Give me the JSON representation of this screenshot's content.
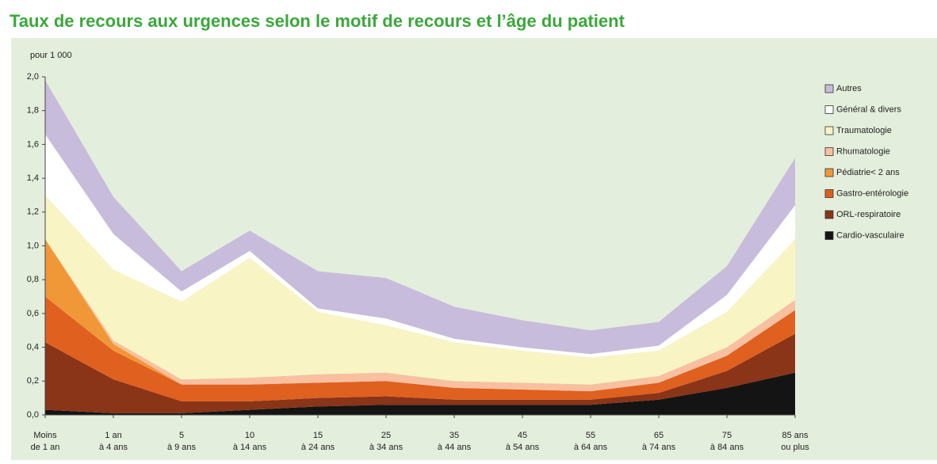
{
  "chart_data": {
    "type": "stacked_area",
    "title": "Taux de recours aux urgences selon le motif de recours et l’âge du patient",
    "y_axis_label": "pour 1 000",
    "categories": [
      [
        "Moins",
        "de 1 an"
      ],
      [
        "1 an",
        "à 4 ans"
      ],
      [
        "5",
        "à 9 ans"
      ],
      [
        "10",
        "à 14 ans"
      ],
      [
        "15",
        "à 24 ans"
      ],
      [
        "25",
        "à 34 ans"
      ],
      [
        "35",
        "à 44 ans"
      ],
      [
        "45",
        "à 54 ans"
      ],
      [
        "55",
        "à 64 ans"
      ],
      [
        "65",
        "à 74 ans"
      ],
      [
        "75",
        "à 84 ans"
      ],
      [
        "85 ans",
        "ou plus"
      ]
    ],
    "series": [
      {
        "name": "Cardio-vasculaire",
        "color": "#141414",
        "values": [
          0.03,
          0.01,
          0.01,
          0.03,
          0.05,
          0.06,
          0.06,
          0.06,
          0.06,
          0.09,
          0.16,
          0.25
        ]
      },
      {
        "name": "ORL-respiratoire",
        "color": "#8a3418",
        "values": [
          0.4,
          0.2,
          0.07,
          0.05,
          0.05,
          0.05,
          0.03,
          0.03,
          0.03,
          0.04,
          0.1,
          0.23
        ]
      },
      {
        "name": "Gastro-entérologie",
        "color": "#e06020",
        "values": [
          0.27,
          0.17,
          0.1,
          0.1,
          0.09,
          0.09,
          0.07,
          0.06,
          0.05,
          0.06,
          0.09,
          0.14
        ]
      },
      {
        "name": "Pédiatrie< 2 ans",
        "color": "#f09838",
        "values": [
          0.34,
          0.04,
          0,
          0,
          0,
          0,
          0,
          0,
          0,
          0,
          0,
          0
        ]
      },
      {
        "name": "Rhumatologie",
        "color": "#f8c0a0",
        "values": [
          0,
          0.02,
          0.03,
          0.04,
          0.05,
          0.05,
          0.04,
          0.04,
          0.04,
          0.04,
          0.05,
          0.06
        ]
      },
      {
        "name": "Traumatologie",
        "color": "#f8f4c4",
        "values": [
          0.26,
          0.42,
          0.46,
          0.71,
          0.37,
          0.28,
          0.23,
          0.19,
          0.16,
          0.15,
          0.21,
          0.36
        ]
      },
      {
        "name": "Général & divers",
        "color": "#ffffff",
        "values": [
          0.36,
          0.21,
          0.06,
          0.04,
          0.02,
          0.04,
          0.02,
          0.02,
          0.02,
          0.03,
          0.1,
          0.2
        ]
      },
      {
        "name": "Autres",
        "color": "#c8bcdc",
        "values": [
          0.32,
          0.22,
          0.12,
          0.12,
          0.22,
          0.24,
          0.19,
          0.16,
          0.14,
          0.14,
          0.17,
          0.28
        ]
      }
    ],
    "ylim": [
      0,
      2
    ],
    "yticks": [
      {
        "value": 0,
        "label": "0,0"
      },
      {
        "value": 0.2,
        "label": "0,2"
      },
      {
        "value": 0.4,
        "label": "0,4"
      },
      {
        "value": 0.6,
        "label": "0,6"
      },
      {
        "value": 0.8,
        "label": "0,8"
      },
      {
        "value": 1,
        "label": "1,0"
      },
      {
        "value": 1.2,
        "label": "1,2"
      },
      {
        "value": 1.4,
        "label": "1,4"
      },
      {
        "value": 1.6,
        "label": "1,6"
      },
      {
        "value": 1.8,
        "label": "1,8"
      },
      {
        "value": 2,
        "label": "2,0"
      }
    ],
    "grid": false,
    "legend": "right"
  }
}
